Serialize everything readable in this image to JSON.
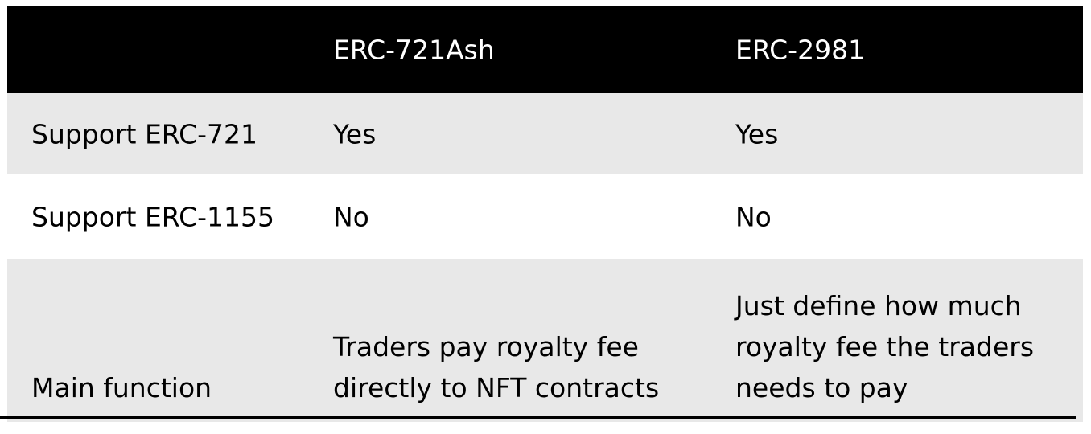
{
  "table": {
    "header": [
      "",
      "ERC-721Ash",
      "ERC-2981"
    ],
    "rows": [
      [
        "Support ERC-721",
        "Yes",
        "Yes"
      ],
      [
        "Support ERC-1155",
        "No",
        "No"
      ],
      [
        "Main function",
        "Traders pay royalty fee directly to NFT contracts",
        "Just define how much royalty fee the traders needs to pay"
      ]
    ]
  },
  "colors": {
    "header_bg": "#000000",
    "header_text": "#ffffff",
    "shaded_row_bg": "#e8e8e8",
    "plain_row_bg": "#ffffff",
    "body_text": "#000000"
  }
}
